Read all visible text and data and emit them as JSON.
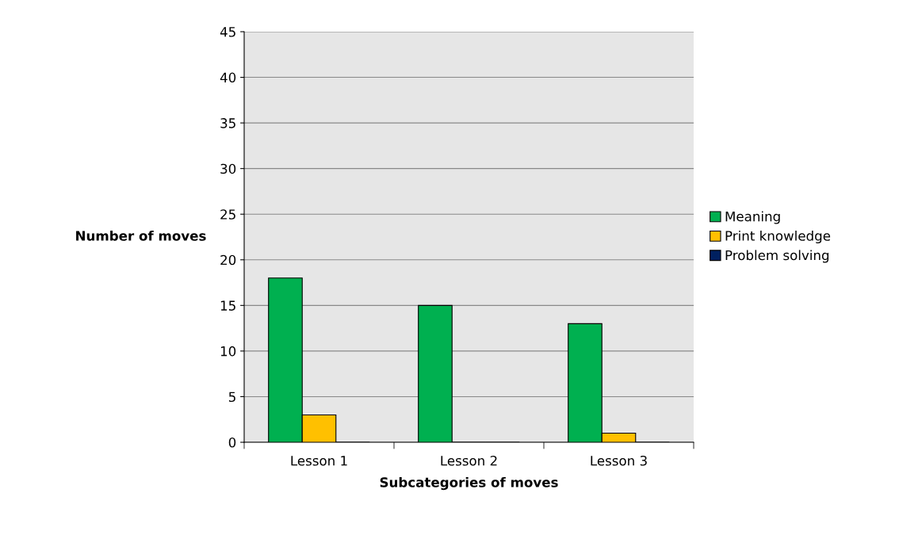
{
  "chart_data": {
    "type": "bar",
    "xlabel": "Subcategories of moves",
    "ylabel": "Number of moves",
    "categories": [
      "Lesson 1",
      "Lesson 2",
      "Lesson 3"
    ],
    "series": [
      {
        "name": "Meaning",
        "color": "#00b050",
        "values": [
          18,
          15,
          13
        ]
      },
      {
        "name": "Print knowledge",
        "color": "#ffc000",
        "values": [
          3,
          0,
          1
        ]
      },
      {
        "name": "Problem solving",
        "color": "#002060",
        "values": [
          0,
          0,
          0
        ]
      }
    ],
    "ylim": [
      0,
      45
    ],
    "yticks": [
      0,
      5,
      10,
      15,
      20,
      25,
      30,
      35,
      40,
      45
    ],
    "grid": "y",
    "legend": "right"
  }
}
